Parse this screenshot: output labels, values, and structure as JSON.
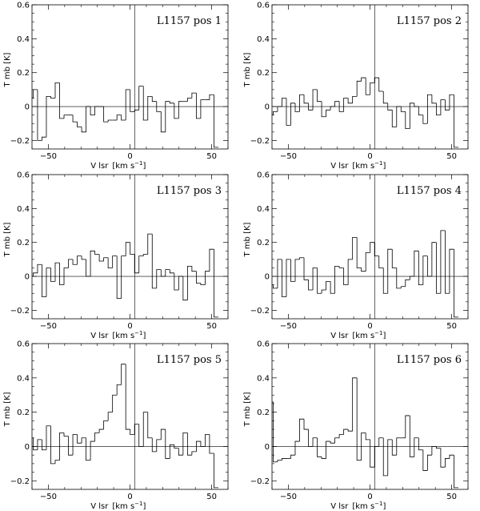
{
  "chart_data": [
    {
      "type": "line",
      "drawstyle": "steps",
      "title": "L1157 pos 1",
      "xlabel_main": "V lsr",
      "xlabel_unit": "[km s",
      "xlabel_exp": "−1",
      "xlabel_close": "]",
      "ylabel": "T mb [K]",
      "xlim": [
        -60,
        60
      ],
      "ylim": [
        -0.25,
        0.6
      ],
      "xticks": [
        -50,
        0,
        50
      ],
      "xtick_labels": [
        "−50",
        "0",
        "50"
      ],
      "yticks": [
        -0.2,
        0,
        0.2,
        0.4,
        0.6
      ],
      "ytick_labels": [
        "−0.2",
        "0",
        "0.2",
        "0.4",
        "0.6"
      ],
      "vline_x": 3,
      "hline_y": 0,
      "x": [
        -62,
        -59.3,
        -56.6,
        -53.9,
        -51.2,
        -48.5,
        -45.8,
        -43.1,
        -40.4,
        -37.7,
        -35.0,
        -32.3,
        -29.6,
        -26.9,
        -24.2,
        -21.5,
        -18.8,
        -16.1,
        -13.4,
        -10.7,
        -8.0,
        -5.3,
        -2.6,
        0.1,
        2.8,
        5.5,
        8.2,
        10.9,
        13.6,
        16.3,
        19.0,
        21.7,
        24.4,
        27.1,
        29.8,
        32.5,
        35.2,
        37.9,
        40.6,
        43.3,
        46.0,
        48.7,
        51.4
      ],
      "y": [
        0.05,
        0.1,
        -0.2,
        -0.18,
        0.06,
        0.05,
        0.14,
        -0.07,
        -0.05,
        -0.05,
        -0.09,
        -0.12,
        -0.15,
        0.0,
        -0.05,
        0.0,
        0.0,
        -0.09,
        -0.08,
        -0.08,
        -0.05,
        -0.08,
        0.1,
        -0.03,
        -0.02,
        0.12,
        -0.08,
        0.06,
        0.03,
        -0.03,
        -0.15,
        0.03,
        0.02,
        -0.07,
        0.03,
        0.03,
        0.05,
        0.08,
        -0.07,
        0.04,
        0.04,
        0.07,
        -0.24
      ],
      "step": 2.7
    },
    {
      "type": "line",
      "drawstyle": "steps",
      "title": "L1157 pos 2",
      "xlabel_main": "V lsr",
      "xlabel_unit": "[km s",
      "xlabel_exp": "−1",
      "xlabel_close": "]",
      "ylabel": "T mb [K]",
      "xlim": [
        -60,
        60
      ],
      "ylim": [
        -0.25,
        0.6
      ],
      "xticks": [
        -50,
        0,
        50
      ],
      "xtick_labels": [
        "−50",
        "0",
        "50"
      ],
      "yticks": [
        -0.2,
        0,
        0.2,
        0.4,
        0.6
      ],
      "ytick_labels": [
        "−0.2",
        "0",
        "0.2",
        "0.4",
        "0.6"
      ],
      "vline_x": 3,
      "hline_y": 0,
      "x": [
        -62,
        -59.3,
        -56.6,
        -53.9,
        -51.2,
        -48.5,
        -45.8,
        -43.1,
        -40.4,
        -37.7,
        -35.0,
        -32.3,
        -29.6,
        -26.9,
        -24.2,
        -21.5,
        -18.8,
        -16.1,
        -13.4,
        -10.7,
        -8.0,
        -5.3,
        -2.6,
        0.1,
        2.8,
        5.5,
        8.2,
        10.9,
        13.6,
        16.3,
        19.0,
        21.7,
        24.4,
        27.1,
        29.8,
        32.5,
        35.2,
        37.9,
        40.6,
        43.3,
        46.0,
        48.7,
        51.4
      ],
      "y": [
        -0.05,
        -0.03,
        0.0,
        0.05,
        -0.11,
        0.02,
        -0.03,
        0.07,
        0.02,
        -0.02,
        0.1,
        0.03,
        -0.06,
        -0.02,
        0.0,
        0.03,
        -0.03,
        0.05,
        0.02,
        0.06,
        0.15,
        0.17,
        0.07,
        0.14,
        0.17,
        0.09,
        0.02,
        -0.02,
        -0.12,
        0.0,
        -0.03,
        -0.13,
        0.02,
        0.0,
        -0.05,
        -0.1,
        0.07,
        0.02,
        -0.05,
        0.04,
        -0.02,
        0.07,
        -0.24
      ],
      "step": 2.7
    },
    {
      "type": "line",
      "drawstyle": "steps",
      "title": "L1157 pos 3",
      "xlabel_main": "V lsr",
      "xlabel_unit": "[km s",
      "xlabel_exp": "−1",
      "xlabel_close": "]",
      "ylabel": "T mb [K]",
      "xlim": [
        -60,
        60
      ],
      "ylim": [
        -0.25,
        0.6
      ],
      "xticks": [
        -50,
        0,
        50
      ],
      "xtick_labels": [
        "−50",
        "0",
        "50"
      ],
      "yticks": [
        -0.2,
        0,
        0.2,
        0.4,
        0.6
      ],
      "ytick_labels": [
        "−0.2",
        "0",
        "0.2",
        "0.4",
        "0.6"
      ],
      "vline_x": 3,
      "hline_y": 0,
      "x": [
        -62,
        -59.3,
        -56.6,
        -53.9,
        -51.2,
        -48.5,
        -45.8,
        -43.1,
        -40.4,
        -37.7,
        -35.0,
        -32.3,
        -29.6,
        -26.9,
        -24.2,
        -21.5,
        -18.8,
        -16.1,
        -13.4,
        -10.7,
        -8.0,
        -5.3,
        -2.6,
        0.1,
        2.8,
        5.5,
        8.2,
        10.9,
        13.6,
        16.3,
        19.0,
        21.7,
        24.4,
        27.1,
        29.8,
        32.5,
        35.2,
        37.9,
        40.6,
        43.3,
        46.0,
        48.7,
        51.4
      ],
      "y": [
        0.0,
        0.02,
        0.07,
        -0.12,
        0.05,
        -0.03,
        0.08,
        -0.05,
        0.05,
        0.1,
        0.07,
        0.12,
        0.1,
        0.0,
        0.15,
        0.13,
        0.09,
        0.11,
        0.05,
        0.12,
        -0.13,
        0.12,
        0.2,
        0.13,
        0.02,
        0.12,
        0.13,
        0.25,
        -0.07,
        0.04,
        0.0,
        0.04,
        0.02,
        -0.08,
        0.0,
        -0.14,
        0.06,
        0.03,
        -0.04,
        -0.05,
        0.03,
        0.16,
        -0.24
      ],
      "step": 2.7
    },
    {
      "type": "line",
      "drawstyle": "steps",
      "title": "L1157 pos 4",
      "xlabel_main": "V lsr",
      "xlabel_unit": "[km s",
      "xlabel_exp": "−1",
      "xlabel_close": "]",
      "ylabel": "T mb [K]",
      "xlim": [
        -60,
        60
      ],
      "ylim": [
        -0.25,
        0.6
      ],
      "xticks": [
        -50,
        0,
        50
      ],
      "xtick_labels": [
        "−50",
        "0",
        "50"
      ],
      "yticks": [
        -0.2,
        0,
        0.2,
        0.4,
        0.6
      ],
      "ytick_labels": [
        "−0.2",
        "0",
        "0.2",
        "0.4",
        "0.6"
      ],
      "vline_x": 3,
      "hline_y": 0,
      "x": [
        -62,
        -59.3,
        -56.6,
        -53.9,
        -51.2,
        -48.5,
        -45.8,
        -43.1,
        -40.4,
        -37.7,
        -35.0,
        -32.3,
        -29.6,
        -26.9,
        -24.2,
        -21.5,
        -18.8,
        -16.1,
        -13.4,
        -10.7,
        -8.0,
        -5.3,
        -2.6,
        0.1,
        2.8,
        5.5,
        8.2,
        10.9,
        13.6,
        16.3,
        19.0,
        21.7,
        24.4,
        27.1,
        29.8,
        32.5,
        35.2,
        37.9,
        40.6,
        43.3,
        46.0,
        48.7,
        51.4
      ],
      "y": [
        -0.05,
        -0.07,
        0.1,
        -0.12,
        0.1,
        -0.03,
        0.1,
        0.11,
        -0.02,
        -0.08,
        0.05,
        -0.1,
        -0.08,
        -0.03,
        -0.1,
        0.06,
        0.05,
        -0.05,
        0.1,
        0.23,
        0.05,
        0.03,
        0.14,
        0.2,
        0.12,
        0.05,
        -0.1,
        0.16,
        0.05,
        -0.07,
        -0.06,
        -0.02,
        0.0,
        0.15,
        -0.05,
        0.12,
        0.0,
        0.2,
        -0.1,
        0.27,
        -0.1,
        0.16,
        -0.24
      ],
      "step": 2.7
    },
    {
      "type": "line",
      "drawstyle": "steps",
      "title": "L1157 pos 5",
      "xlabel_main": "V lsr",
      "xlabel_unit": "[km s",
      "xlabel_exp": "−1",
      "xlabel_close": "]",
      "ylabel": "T mb [K]",
      "xlim": [
        -60,
        60
      ],
      "ylim": [
        -0.25,
        0.6
      ],
      "xticks": [
        -50,
        0,
        50
      ],
      "xtick_labels": [
        "−50",
        "0",
        "50"
      ],
      "yticks": [
        -0.2,
        0,
        0.2,
        0.4,
        0.6
      ],
      "ytick_labels": [
        "−0.2",
        "0",
        "0.2",
        "0.4",
        "0.6"
      ],
      "vline_x": 3,
      "hline_y": 0,
      "x": [
        -62,
        -59.3,
        -56.6,
        -53.9,
        -51.2,
        -48.5,
        -45.8,
        -43.1,
        -40.4,
        -37.7,
        -35.0,
        -32.3,
        -29.6,
        -26.9,
        -24.2,
        -21.5,
        -18.8,
        -16.1,
        -13.4,
        -10.7,
        -8.0,
        -5.3,
        -2.6,
        0.1,
        2.8,
        5.5,
        8.2,
        10.9,
        13.6,
        16.3,
        19.0,
        21.7,
        24.4,
        27.1,
        29.8,
        32.5,
        35.2,
        37.9,
        40.6,
        43.3,
        46.0,
        48.7,
        51.4
      ],
      "y": [
        0.05,
        -0.02,
        0.04,
        -0.02,
        0.12,
        -0.1,
        -0.08,
        0.08,
        0.06,
        -0.05,
        0.07,
        0.02,
        0.05,
        -0.08,
        0.03,
        0.08,
        0.1,
        0.15,
        0.2,
        0.3,
        0.36,
        0.48,
        0.1,
        0.07,
        0.13,
        0.0,
        0.2,
        0.05,
        -0.03,
        0.04,
        0.1,
        -0.07,
        0.01,
        -0.01,
        -0.05,
        0.08,
        -0.05,
        -0.03,
        0.03,
        0.0,
        0.07,
        -0.04,
        -0.24
      ],
      "step": 2.7
    },
    {
      "type": "line",
      "drawstyle": "steps",
      "title": "L1157 pos 6",
      "xlabel_main": "V lsr",
      "xlabel_unit": "[km s",
      "xlabel_exp": "−1",
      "xlabel_close": "]",
      "ylabel": "T mb [K]",
      "xlim": [
        -60,
        60
      ],
      "ylim": [
        -0.25,
        0.6
      ],
      "xticks": [
        -50,
        0,
        50
      ],
      "xtick_labels": [
        "−50",
        "0",
        "50"
      ],
      "yticks": [
        -0.2,
        0,
        0.2,
        0.4,
        0.6
      ],
      "ytick_labels": [
        "−0.2",
        "0",
        "0.2",
        "0.4",
        "0.6"
      ],
      "vline_x": 3,
      "hline_y": 0,
      "x": [
        -62,
        -59.3,
        -56.6,
        -53.9,
        -51.2,
        -48.5,
        -45.8,
        -43.1,
        -40.4,
        -37.7,
        -35.0,
        -32.3,
        -29.6,
        -26.9,
        -24.2,
        -21.5,
        -18.8,
        -16.1,
        -13.4,
        -10.7,
        -8.0,
        -5.3,
        -2.6,
        0.1,
        2.8,
        5.5,
        8.2,
        10.9,
        13.6,
        16.3,
        19.0,
        21.7,
        24.4,
        27.1,
        29.8,
        32.5,
        35.2,
        37.9,
        40.6,
        43.3,
        46.0,
        48.7,
        51.4
      ],
      "y": [
        0.26,
        -0.09,
        -0.08,
        -0.07,
        -0.07,
        -0.05,
        0.03,
        0.16,
        0.1,
        0.0,
        0.05,
        -0.06,
        -0.07,
        0.03,
        0.02,
        0.05,
        0.07,
        0.1,
        0.09,
        0.4,
        -0.08,
        0.08,
        0.04,
        -0.12,
        0.0,
        0.05,
        -0.17,
        0.04,
        -0.05,
        0.05,
        0.05,
        0.18,
        -0.06,
        0.05,
        -0.02,
        -0.14,
        -0.05,
        0.0,
        -0.01,
        -0.12,
        -0.07,
        -0.05,
        -0.24
      ],
      "step": 2.7
    }
  ]
}
